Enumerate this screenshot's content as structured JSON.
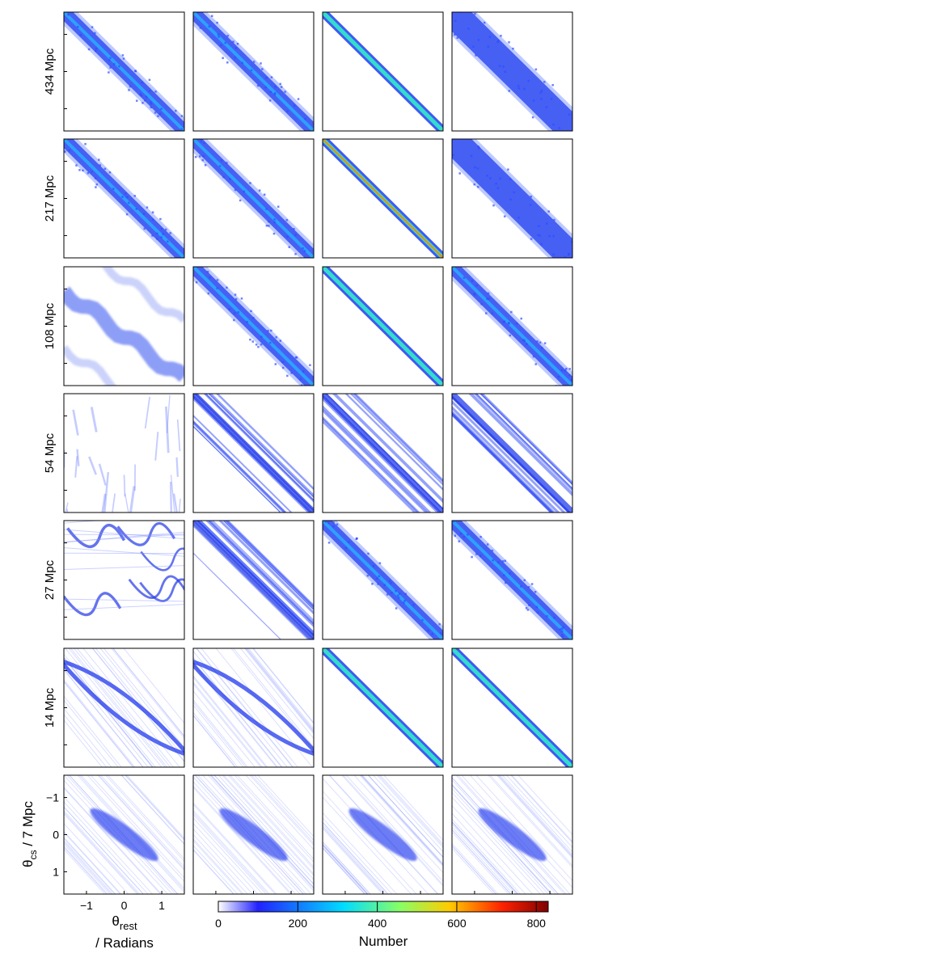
{
  "chart_data": {
    "type": "heatmap",
    "grid": {
      "rows": 7,
      "cols": 4
    },
    "row_labels": [
      "434 Mpc",
      "217 Mpc",
      "108 Mpc",
      "54 Mpc",
      "27 Mpc",
      "14 Mpc",
      "7 Mpc"
    ],
    "panel_patterns": [
      [
        "band",
        "band",
        "thin_band",
        "wide_band"
      ],
      [
        "band",
        "band",
        "thin_band_hot",
        "wide_band"
      ],
      [
        "wavy",
        "band",
        "thin_band",
        "band"
      ],
      [
        "streaks",
        "filaments",
        "filaments",
        "filaments"
      ],
      [
        "swirls",
        "filaments",
        "band",
        "band"
      ],
      [
        "lens",
        "lens",
        "thin_band",
        "thin_band"
      ],
      [
        "blob",
        "blob",
        "blob",
        "blob"
      ]
    ],
    "x_axis": {
      "label_main": "θ",
      "label_sub": "rest",
      "label_units": "/ Radians",
      "ticks": [
        -1,
        0,
        1
      ],
      "tick_labels": [
        "−1",
        "0",
        "1"
      ],
      "range": [
        -1.6,
        1.6
      ]
    },
    "y_axis": {
      "label_main": "θ",
      "label_sub": "cs",
      "label_units": " / 7 Mpc",
      "ticks": [
        -1,
        0,
        1
      ],
      "tick_labels": [
        "−1",
        "0",
        "1"
      ],
      "range": [
        -1.6,
        1.6
      ],
      "reversed": true
    },
    "colorbar": {
      "title": "Number",
      "range": [
        0,
        830
      ],
      "ticks": [
        0,
        200,
        400,
        600,
        800
      ],
      "tick_labels": [
        "0",
        "200",
        "400",
        "600",
        "800"
      ],
      "colormap": [
        "#ffffff",
        "#0000ff",
        "#00ffff",
        "#ffff00",
        "#ff0000",
        "#800000"
      ]
    }
  }
}
